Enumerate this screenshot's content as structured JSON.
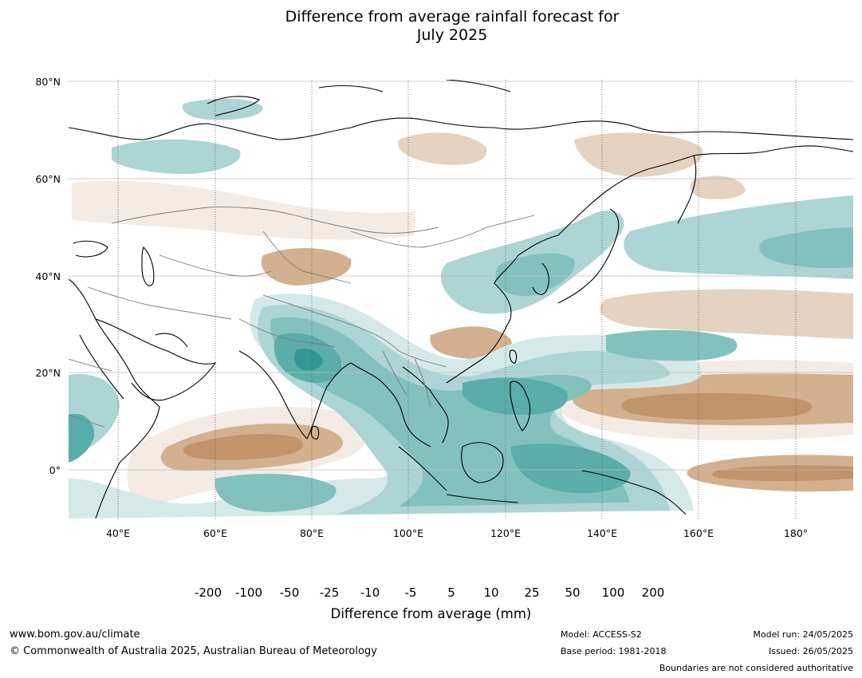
{
  "title": {
    "line1": "Difference from average rainfall forecast for",
    "line2": "July 2025"
  },
  "lat_ticks": [
    {
      "label": "80°N",
      "lat": 80
    },
    {
      "label": "60°N",
      "lat": 60
    },
    {
      "label": "40°N",
      "lat": 40
    },
    {
      "label": "20°N",
      "lat": 20
    },
    {
      "label": "0°",
      "lat": 0
    }
  ],
  "lon_ticks": [
    {
      "label": "40°E",
      "lon": 40
    },
    {
      "label": "60°E",
      "lon": 60
    },
    {
      "label": "80°E",
      "lon": 80
    },
    {
      "label": "100°E",
      "lon": 100
    },
    {
      "label": "120°E",
      "lon": 120
    },
    {
      "label": "140°E",
      "lon": 140
    },
    {
      "label": "160°E",
      "lon": 160
    },
    {
      "label": "180°",
      "lon": 180
    }
  ],
  "colorbar": {
    "title": "Difference from average (mm)",
    "labels": [
      "-200",
      "-100",
      "-50",
      "-25",
      "-10",
      "-5",
      "5",
      "10",
      "25",
      "50",
      "100",
      "200"
    ],
    "colors": [
      "#8f5a28",
      "#ad773f",
      "#c2946a",
      "#d3b08e",
      "#e6d2c0",
      "#f3ebe4",
      "#ffffff",
      "#d5e9e8",
      "#acd5d4",
      "#83c1bf",
      "#5aadab",
      "#339895",
      "#1e6e6b"
    ]
  },
  "footer": {
    "website": "www.bom.gov.au/climate",
    "copyright": "© Commonwealth of Australia 2025, Australian Bureau of Meteorology",
    "model": "Model: ACCESS-S2",
    "base_period": "Base period: 1981-2018",
    "model_run": "Model run: 24/05/2025",
    "issued": "Issued: 26/05/2025",
    "boundaries": "Boundaries are not considered authoritative"
  }
}
